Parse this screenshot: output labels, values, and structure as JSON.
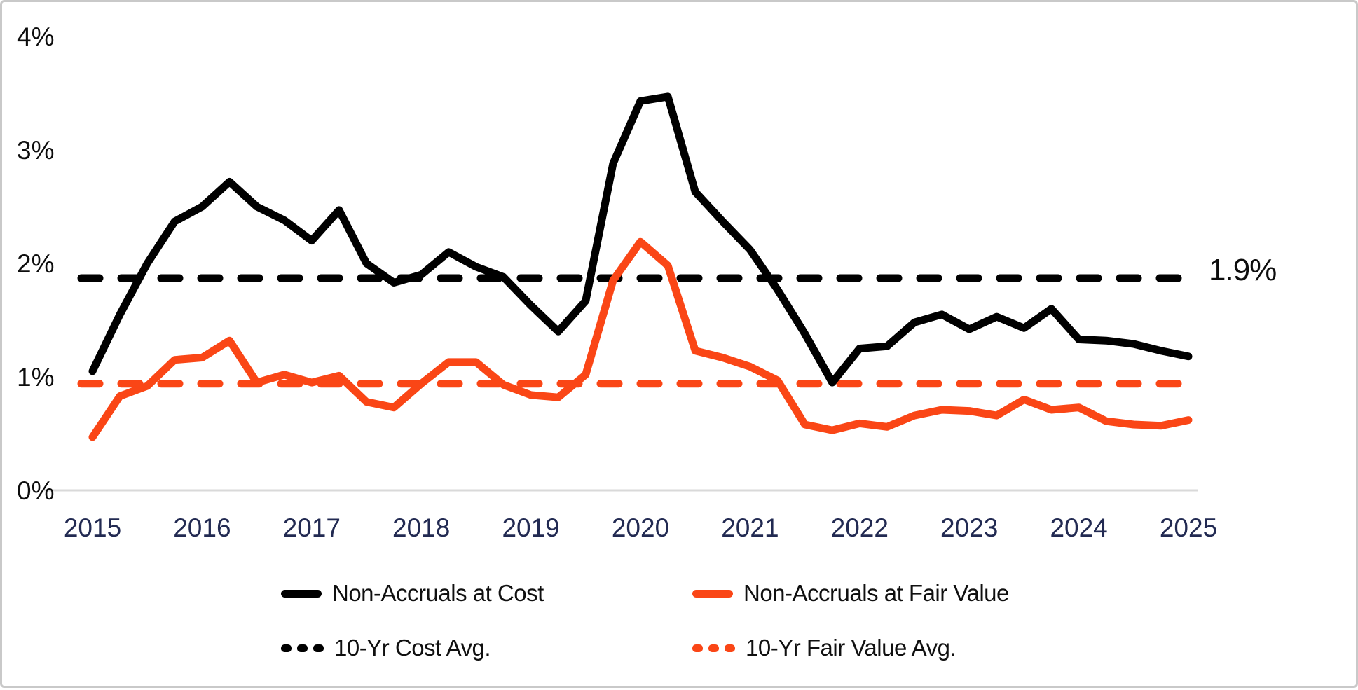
{
  "colors": {
    "cost": "#000000",
    "fair": "#FA4616",
    "y_label": "#0d0d0d",
    "x_label": "#222A52",
    "axis_line": "#D9D9D9",
    "frame_border": "#C9C9C9",
    "background": "#FFFFFF"
  },
  "chart_data": {
    "type": "line",
    "title": "",
    "xlabel": "",
    "ylabel": "",
    "grid": "off",
    "legend_position": "bottom",
    "ylim": [
      0,
      4
    ],
    "xlim": [
      2015,
      2025.25
    ],
    "x_start_year": 2015,
    "x_step_years": 0.25,
    "x_ticks": [
      "2015",
      "2016",
      "2017",
      "2018",
      "2019",
      "2020",
      "2021",
      "2022",
      "2023",
      "2024",
      "2025"
    ],
    "y_ticks": [
      {
        "label": "0%",
        "value": 0
      },
      {
        "label": "1%",
        "value": 1
      },
      {
        "label": "2%",
        "value": 2
      },
      {
        "label": "3%",
        "value": 3
      },
      {
        "label": "4%",
        "value": 4
      }
    ],
    "series": [
      {
        "name": "Non-Accruals at Cost",
        "style": "solid",
        "color_key": "cost",
        "values": [
          1.05,
          1.55,
          2.0,
          2.37,
          2.5,
          2.72,
          2.5,
          2.38,
          2.2,
          2.47,
          2.0,
          1.83,
          1.9,
          2.1,
          1.97,
          1.88,
          1.63,
          1.4,
          1.67,
          2.88,
          3.43,
          3.47,
          2.63,
          2.37,
          2.12,
          1.77,
          1.38,
          0.95,
          1.25,
          1.27,
          1.48,
          1.55,
          1.42,
          1.53,
          1.43,
          1.6,
          1.33,
          1.32,
          1.29,
          1.23,
          1.18
        ]
      },
      {
        "name": "Non-Accruals at Fair Value",
        "style": "solid",
        "color_key": "fair",
        "values": [
          0.47,
          0.83,
          0.92,
          1.15,
          1.17,
          1.32,
          0.95,
          1.02,
          0.95,
          1.01,
          0.78,
          0.73,
          0.94,
          1.13,
          1.13,
          0.93,
          0.84,
          0.82,
          1.02,
          1.85,
          2.19,
          1.98,
          1.23,
          1.17,
          1.09,
          0.97,
          0.58,
          0.53,
          0.59,
          0.56,
          0.66,
          0.71,
          0.7,
          0.66,
          0.8,
          0.71,
          0.73,
          0.61,
          0.58,
          0.57,
          0.62
        ]
      }
    ],
    "reference_lines": [
      {
        "name": "10-Yr Cost Avg.",
        "value": 1.87,
        "style": "dashed",
        "color_key": "cost",
        "annotation": "1.9%"
      },
      {
        "name": "10-Yr Fair Value Avg.",
        "value": 0.94,
        "style": "dashed",
        "color_key": "fair",
        "annotation": ""
      }
    ]
  }
}
